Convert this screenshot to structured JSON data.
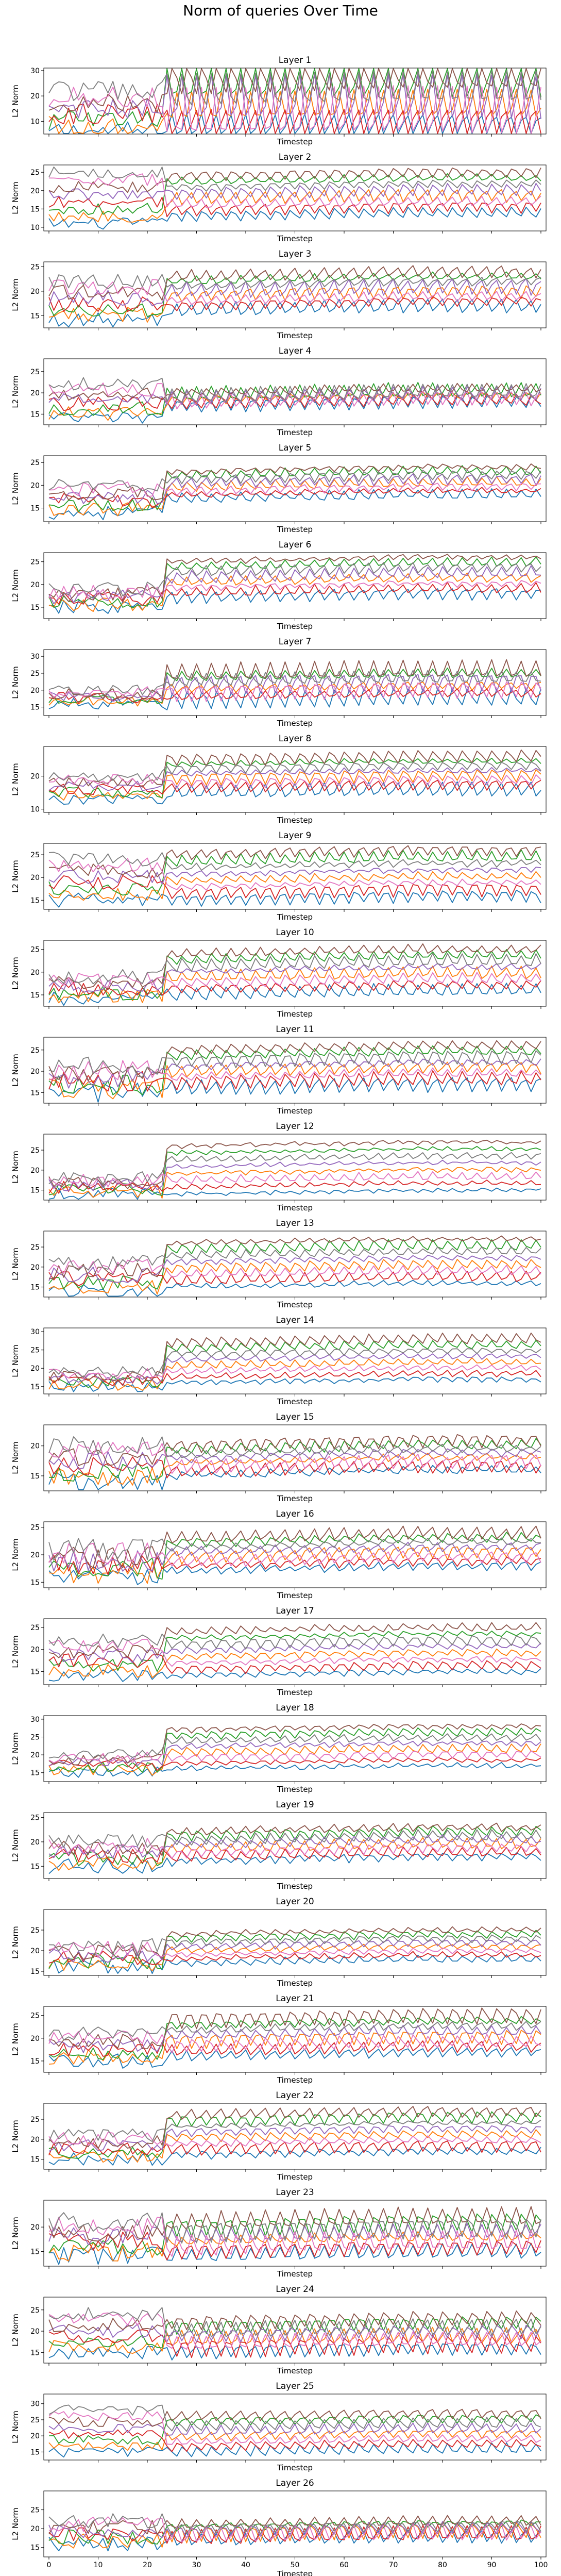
{
  "figure": {
    "title": "Norm of queries Over Time"
  },
  "colors": {
    "palette": [
      "#1f77b4",
      "#ff7f0e",
      "#2ca02c",
      "#d62728",
      "#9467bd",
      "#8c564b",
      "#e377c2",
      "#7f7f7f"
    ]
  },
  "chart_data": {
    "type": "line",
    "x_range": [
      0,
      100
    ],
    "x_ticks": [
      0,
      10,
      20,
      30,
      40,
      50,
      60,
      70,
      80,
      90,
      100
    ],
    "xlabel": "Timestep",
    "ylabel": "L2 Norm",
    "grid": false,
    "legend": false,
    "series_per_panel": 8,
    "panels": [
      {
        "title": "Layer 1",
        "ylim": [
          5,
          31
        ],
        "yticks": [
          10,
          20,
          30
        ],
        "pre": [
          6,
          22
        ],
        "post": [
          7,
          29
        ],
        "spread": 5,
        "osc": 9
      },
      {
        "title": "Layer 2",
        "ylim": [
          9,
          27
        ],
        "yticks": [
          10,
          15,
          20,
          25
        ],
        "pre": [
          11,
          25
        ],
        "post": [
          14,
          25
        ],
        "spread": 2,
        "osc": 1.5
      },
      {
        "title": "Layer 3",
        "ylim": [
          12.5,
          26
        ],
        "yticks": [
          15,
          20,
          25
        ],
        "pre": [
          14,
          22
        ],
        "post": [
          17,
          24
        ],
        "spread": 2,
        "osc": 1.5
      },
      {
        "title": "Layer 4",
        "ylim": [
          12.5,
          28
        ],
        "yticks": [
          15,
          20,
          25
        ],
        "pre": [
          14,
          22
        ],
        "post": [
          18,
          21
        ],
        "spread": 2,
        "osc": 1.5
      },
      {
        "title": "Layer 5",
        "ylim": [
          12,
          26.5
        ],
        "yticks": [
          15,
          20,
          25
        ],
        "pre": [
          14,
          20
        ],
        "post": [
          18,
          24
        ],
        "spread": 2,
        "osc": 1
      },
      {
        "title": "Layer 6",
        "ylim": [
          12.5,
          27
        ],
        "yticks": [
          15,
          20,
          25
        ],
        "pre": [
          15,
          19
        ],
        "post": [
          18,
          26
        ],
        "spread": 2,
        "osc": 1.2
      },
      {
        "title": "Layer 7",
        "ylim": [
          12.5,
          32
        ],
        "yticks": [
          15,
          20,
          25,
          30
        ],
        "pre": [
          16,
          20
        ],
        "post": [
          18,
          26
        ],
        "spread": 2,
        "osc": 2.5
      },
      {
        "title": "Layer 8",
        "ylim": [
          9,
          29
        ],
        "yticks": [
          10,
          20
        ],
        "pre": [
          13,
          20
        ],
        "post": [
          16,
          26
        ],
        "spread": 2,
        "osc": 2
      },
      {
        "title": "Layer 9",
        "ylim": [
          13,
          27.5
        ],
        "yticks": [
          15,
          20,
          25
        ],
        "pre": [
          15,
          24
        ],
        "post": [
          16,
          26
        ],
        "spread": 2,
        "osc": 1.2
      },
      {
        "title": "Layer 10",
        "ylim": [
          12.5,
          27
        ],
        "yticks": [
          15,
          20,
          25
        ],
        "pre": [
          14,
          19
        ],
        "post": [
          16,
          25
        ],
        "spread": 2,
        "osc": 1.2
      },
      {
        "title": "Layer 11",
        "ylim": [
          12.5,
          28
        ],
        "yticks": [
          15,
          20,
          25
        ],
        "pre": [
          15,
          21
        ],
        "post": [
          17,
          26
        ],
        "spread": 3,
        "osc": 1.5
      },
      {
        "title": "Layer 12",
        "ylim": [
          12.5,
          29
        ],
        "yticks": [
          15,
          20,
          25
        ],
        "pre": [
          14,
          18
        ],
        "post": [
          15,
          27
        ],
        "spread": 2,
        "osc": 0.8
      },
      {
        "title": "Layer 13",
        "ylim": [
          12.5,
          29
        ],
        "yticks": [
          15,
          20,
          25
        ],
        "pre": [
          14,
          21
        ],
        "post": [
          16,
          27
        ],
        "spread": 2.5,
        "osc": 1.2
      },
      {
        "title": "Layer 14",
        "ylim": [
          13,
          31
        ],
        "yticks": [
          15,
          20,
          25,
          30
        ],
        "pre": [
          15,
          19
        ],
        "post": [
          17,
          28
        ],
        "spread": 2,
        "osc": 1.2
      },
      {
        "title": "Layer 15",
        "ylim": [
          12.5,
          23.5
        ],
        "yticks": [
          15,
          20
        ],
        "pre": [
          14,
          20
        ],
        "post": [
          16,
          21
        ],
        "spread": 2,
        "osc": 1
      },
      {
        "title": "Layer 16",
        "ylim": [
          14,
          26
        ],
        "yticks": [
          15,
          20,
          25
        ],
        "pre": [
          16,
          21
        ],
        "post": [
          18,
          24
        ],
        "spread": 2.5,
        "osc": 1.2
      },
      {
        "title": "Layer 17",
        "ylim": [
          12,
          27
        ],
        "yticks": [
          15,
          20,
          25
        ],
        "pre": [
          14,
          22
        ],
        "post": [
          15,
          25
        ],
        "spread": 2,
        "osc": 1
      },
      {
        "title": "Layer 18",
        "ylim": [
          12.5,
          31
        ],
        "yticks": [
          15,
          20,
          25,
          30
        ],
        "pre": [
          15,
          20
        ],
        "post": [
          17,
          28
        ],
        "spread": 2,
        "osc": 1
      },
      {
        "title": "Layer 19",
        "ylim": [
          12.5,
          26
        ],
        "yticks": [
          15,
          20,
          25
        ],
        "pre": [
          15,
          20
        ],
        "post": [
          17,
          23
        ],
        "spread": 2,
        "osc": 1.2
      },
      {
        "title": "Layer 20",
        "ylim": [
          14,
          30
        ],
        "yticks": [
          15,
          20,
          25
        ],
        "pre": [
          16,
          21
        ],
        "post": [
          18,
          25
        ],
        "spread": 2.5,
        "osc": 1.2
      },
      {
        "title": "Layer 21",
        "ylim": [
          12.5,
          27
        ],
        "yticks": [
          15,
          20,
          25
        ],
        "pre": [
          15,
          21
        ],
        "post": [
          17,
          25
        ],
        "spread": 2,
        "osc": 1.5
      },
      {
        "title": "Layer 22",
        "ylim": [
          12.5,
          29
        ],
        "yticks": [
          15,
          20,
          25
        ],
        "pre": [
          15,
          21
        ],
        "post": [
          17,
          27
        ],
        "spread": 2,
        "osc": 1.2
      },
      {
        "title": "Layer 23",
        "ylim": [
          12,
          25.5
        ],
        "yticks": [
          15,
          20
        ],
        "pre": [
          14,
          21
        ],
        "post": [
          15,
          22
        ],
        "spread": 2.5,
        "osc": 2
      },
      {
        "title": "Layer 24",
        "ylim": [
          12.5,
          28
        ],
        "yticks": [
          15,
          20,
          25
        ],
        "pre": [
          15,
          24
        ],
        "post": [
          16,
          23
        ],
        "spread": 2,
        "osc": 2
      },
      {
        "title": "Layer 25",
        "ylim": [
          12.5,
          33
        ],
        "yticks": [
          15,
          20,
          25,
          30
        ],
        "pre": [
          15,
          28
        ],
        "post": [
          16,
          27
        ],
        "spread": 2,
        "osc": 2
      },
      {
        "title": "Layer 26",
        "ylim": [
          12.5,
          30
        ],
        "yticks": [
          15,
          20,
          25
        ],
        "pre": [
          16,
          22
        ],
        "post": [
          18,
          22
        ],
        "spread": 2.5,
        "osc": 2
      }
    ]
  }
}
